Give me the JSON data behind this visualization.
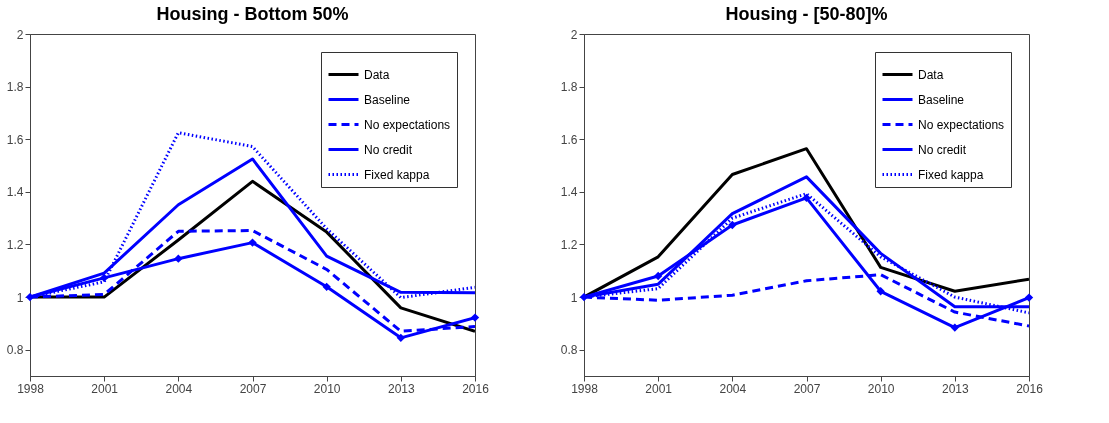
{
  "chart_data": [
    {
      "type": "line",
      "title": "Housing - Bottom 50%",
      "x": [
        1998,
        2001,
        2004,
        2007,
        2010,
        2013,
        2016
      ],
      "xlim": [
        1998,
        2016
      ],
      "xticks": [
        1998,
        2001,
        2004,
        2007,
        2010,
        2013,
        2016
      ],
      "ylim": [
        0.7,
        2
      ],
      "yticks": [
        0.8,
        1,
        1.2,
        1.4,
        1.6,
        1.8,
        2
      ],
      "grid": false,
      "legend": "top right",
      "series": [
        {
          "name": "Data",
          "color": "#000000",
          "line_style": "solid",
          "marker": "none",
          "values": [
            1.0,
            1.0,
            1.217,
            1.44,
            1.247,
            0.959,
            0.87
          ]
        },
        {
          "name": "Baseline",
          "color": "#0000ff",
          "line_style": "solid",
          "marker": "none",
          "values": [
            1.0,
            1.091,
            1.351,
            1.525,
            1.156,
            1.018,
            1.016
          ]
        },
        {
          "name": "No expectations",
          "color": "#0000ff",
          "line_style": "dashed",
          "marker": "none",
          "values": [
            1.0,
            1.01,
            1.25,
            1.253,
            1.105,
            0.87,
            0.888
          ]
        },
        {
          "name": "No credit",
          "color": "#0000ff",
          "line_style": "solid",
          "marker": "diamond",
          "values": [
            1.0,
            1.073,
            1.146,
            1.207,
            1.039,
            0.845,
            0.922
          ]
        },
        {
          "name": "Fixed kappa",
          "color": "#0000ff",
          "line_style": "dotted",
          "marker": "none",
          "values": [
            1.0,
            1.058,
            1.625,
            1.572,
            1.26,
            0.998,
            1.037
          ]
        }
      ]
    },
    {
      "type": "line",
      "title": "Housing - [50-80]%",
      "x": [
        1998,
        2001,
        2004,
        2007,
        2010,
        2013,
        2016
      ],
      "xlim": [
        1998,
        2016
      ],
      "xticks": [
        1998,
        2001,
        2004,
        2007,
        2010,
        2013,
        2016
      ],
      "ylim": [
        0.7,
        2
      ],
      "yticks": [
        0.8,
        1,
        1.2,
        1.4,
        1.6,
        1.8,
        2
      ],
      "grid": false,
      "legend": "top right",
      "series": [
        {
          "name": "Data",
          "color": "#000000",
          "line_style": "solid",
          "marker": "none",
          "values": [
            1.0,
            1.153,
            1.466,
            1.564,
            1.113,
            1.022,
            1.068
          ]
        },
        {
          "name": "Baseline",
          "color": "#0000ff",
          "line_style": "solid",
          "marker": "none",
          "values": [
            1.0,
            1.049,
            1.317,
            1.457,
            1.166,
            0.963,
            0.963
          ]
        },
        {
          "name": "No expectations",
          "color": "#0000ff",
          "line_style": "dashed",
          "marker": "none",
          "values": [
            1.0,
            0.988,
            1.007,
            1.062,
            1.085,
            0.943,
            0.89
          ]
        },
        {
          "name": "No credit",
          "color": "#0000ff",
          "line_style": "solid",
          "marker": "diamond",
          "values": [
            1.0,
            1.08,
            1.274,
            1.377,
            1.022,
            0.884,
            0.998
          ]
        },
        {
          "name": "Fixed kappa",
          "color": "#0000ff",
          "line_style": "dotted",
          "marker": "none",
          "values": [
            1.0,
            1.032,
            1.3,
            1.393,
            1.153,
            1.0,
            0.94
          ]
        }
      ]
    }
  ]
}
